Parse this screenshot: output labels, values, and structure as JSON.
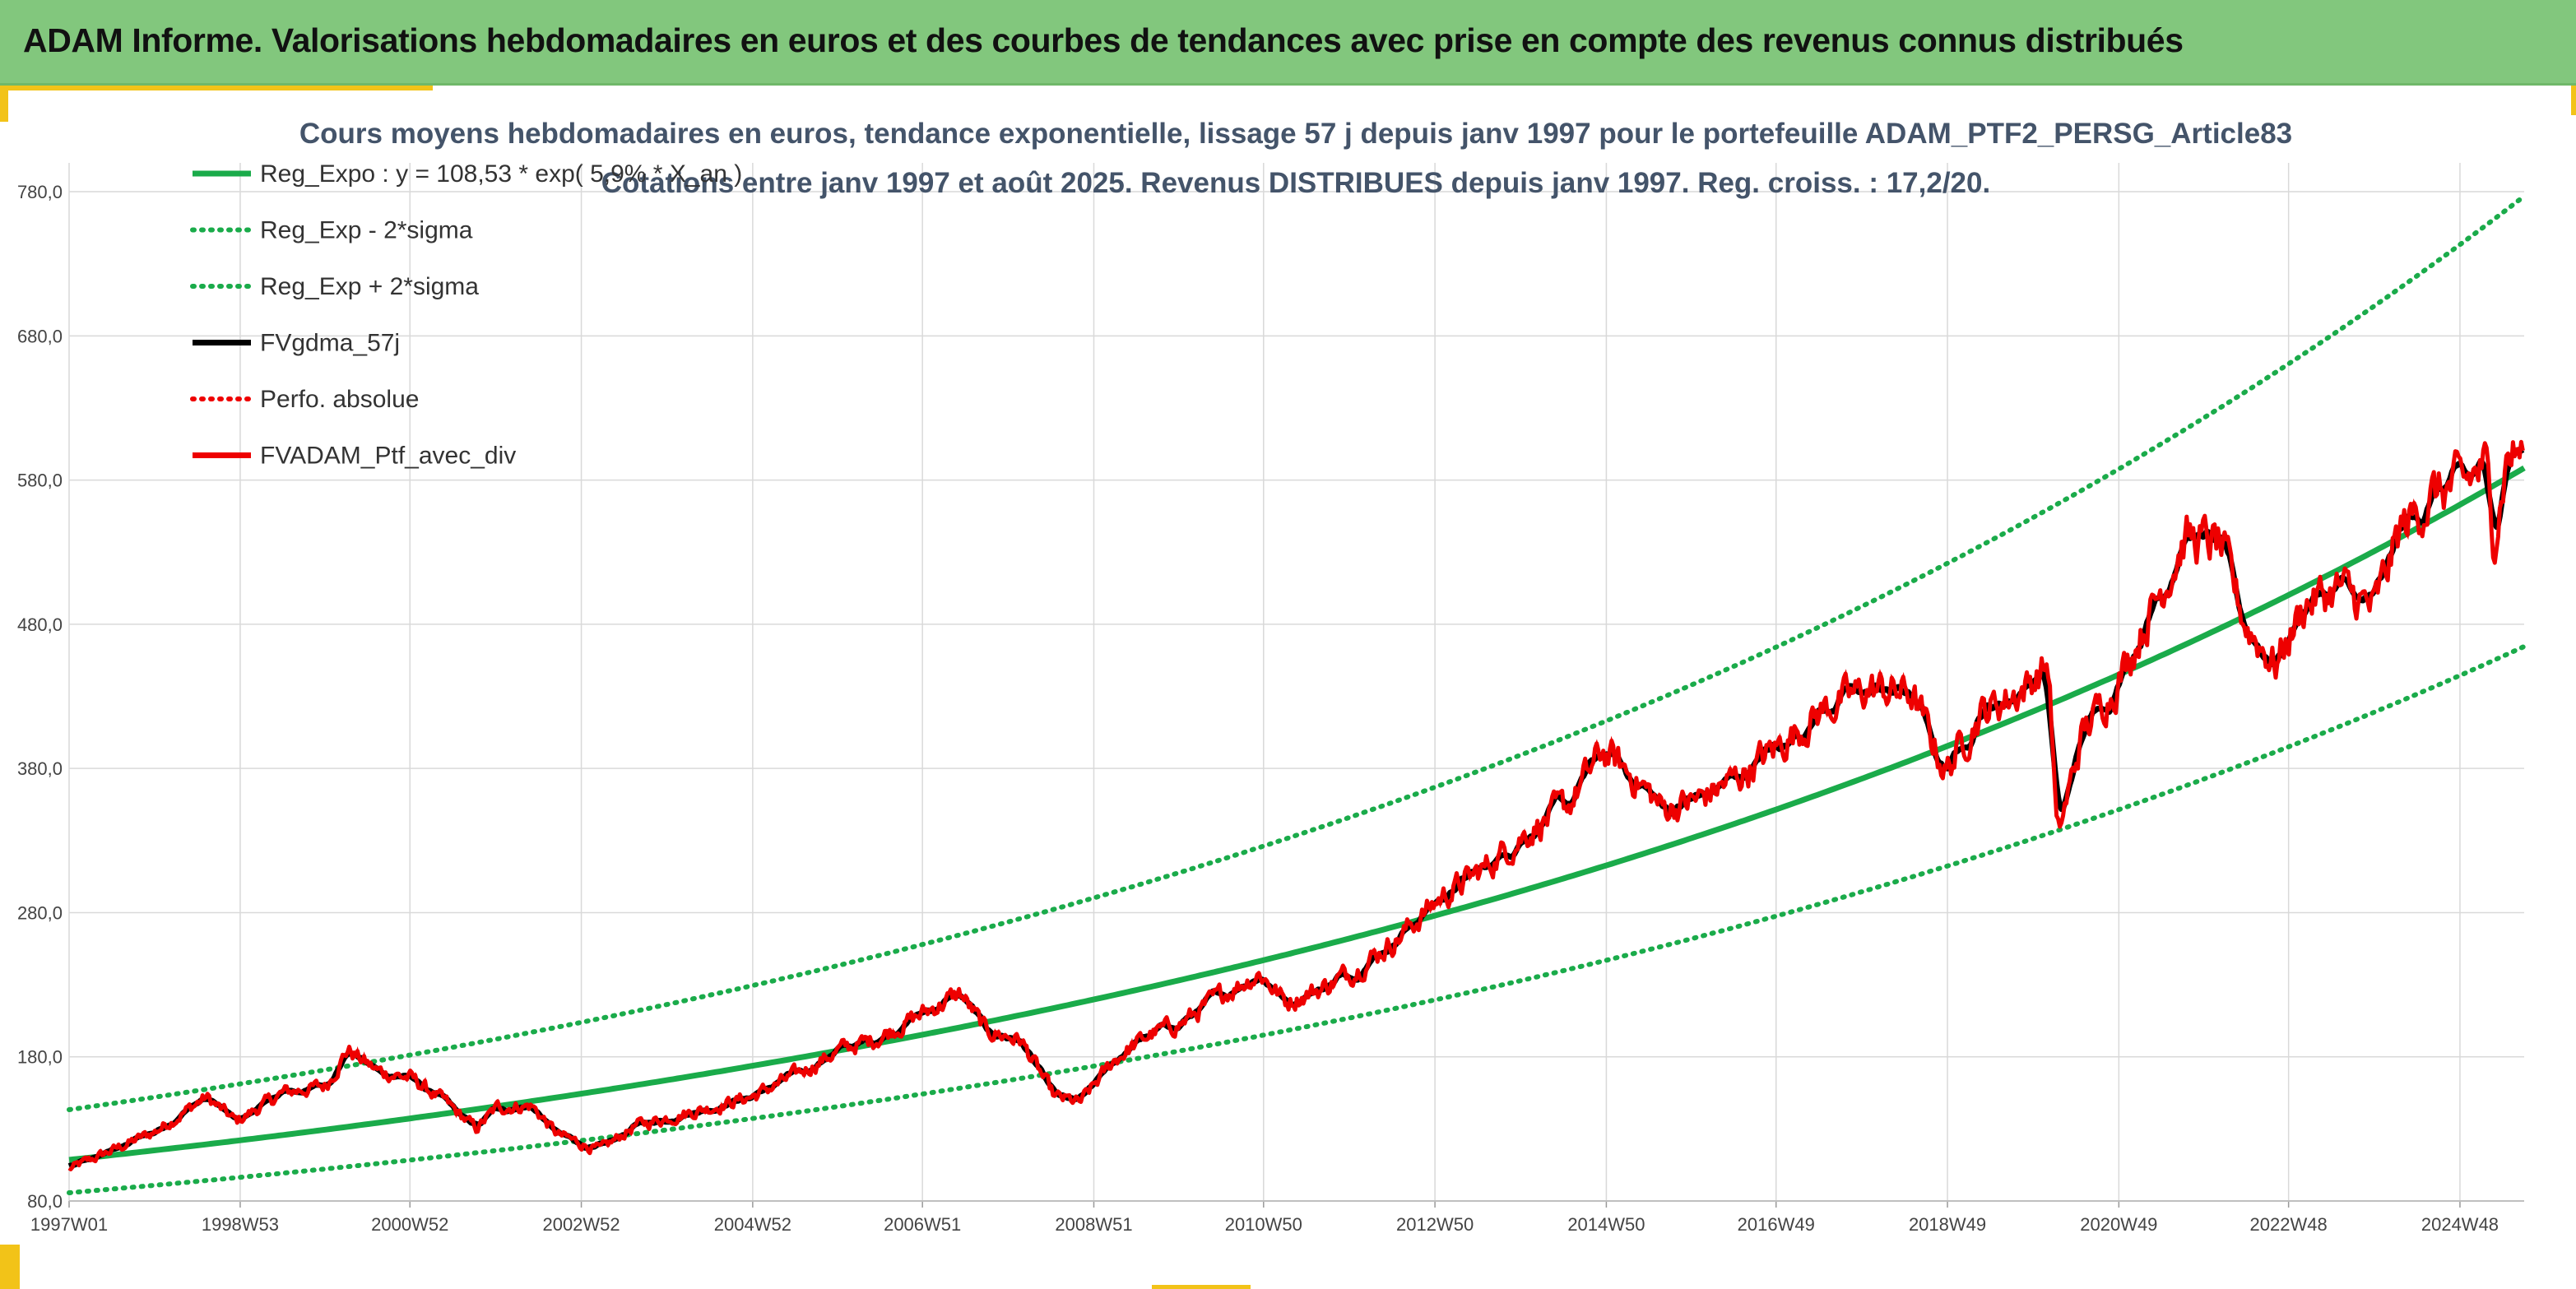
{
  "banner": {
    "title": "ADAM Informe. Valorisations hebdomadaires en euros et des courbes de tendances avec prise en compte des revenus connus distribués"
  },
  "colors": {
    "banner_bg": "#82c77d",
    "accent_yellow": "#f2c318",
    "trend_green": "#1aab4a",
    "smooth_black": "#000000",
    "price_red": "#ee0000",
    "grid": "#d9d9d9"
  },
  "chart_data": {
    "type": "line",
    "title": [
      "Cours moyens hebdomadaires en euros, tendance exponentielle, lissage 57 j depuis janv 1997 pour le portefeuille ADAM_PTF2_PERSG_Article83",
      "Cotations entre janv 1997 et août 2025. Revenus DISTRIBUES depuis janv 1997. Reg. croiss. : 17,2/20."
    ],
    "ylim": [
      80,
      800
    ],
    "xlim": [
      1997.0,
      2025.65
    ],
    "grid": "horizontal and vertical",
    "legend_position": "top-left",
    "yticks": [
      "80,0",
      "180,0",
      "280,0",
      "380,0",
      "480,0",
      "580,0",
      "680,0",
      "780,0"
    ],
    "xticks": [
      "1997W01",
      "1998W53",
      "2000W52",
      "2002W52",
      "2004W52",
      "2006W51",
      "2008W51",
      "2010W50",
      "2012W50",
      "2014W50",
      "2016W49",
      "2018W49",
      "2020W49",
      "2022W48",
      "2024W48"
    ],
    "trend": {
      "a": 108.53,
      "growth": 0.059,
      "lower_factor": 0.7896,
      "upper_factor": 1.3204
    },
    "series": [
      {
        "name": "Reg_Expo : y = 108,53 * exp( 5,9% *  X_an )",
        "style": "solid",
        "color": "#1aab4a"
      },
      {
        "name": "Reg_Exp - 2*sigma",
        "style": "dotted",
        "color": "#1aab4a"
      },
      {
        "name": "Reg_Exp + 2*sigma",
        "style": "dotted",
        "color": "#1aab4a"
      },
      {
        "name": "FVgdma_57j",
        "style": "solid",
        "color": "#000000"
      },
      {
        "name": "Perfo. absolue",
        "style": "dotted",
        "color": "#ee0000"
      },
      {
        "name": "FVADAM_Ptf_avec_div",
        "style": "solid",
        "color": "#ee0000"
      }
    ],
    "price_keypoints": [
      [
        1997.0,
        102
      ],
      [
        1997.5,
        115
      ],
      [
        1998.0,
        128
      ],
      [
        1998.6,
        152
      ],
      [
        1998.95,
        135
      ],
      [
        1999.5,
        155
      ],
      [
        2000.0,
        160
      ],
      [
        2000.25,
        185
      ],
      [
        2000.6,
        170
      ],
      [
        2001.0,
        165
      ],
      [
        2001.4,
        148
      ],
      [
        2001.75,
        130
      ],
      [
        2002.0,
        145
      ],
      [
        2002.4,
        146
      ],
      [
        2002.7,
        126
      ],
      [
        2003.2,
        115
      ],
      [
        2003.6,
        132
      ],
      [
        2004.0,
        138
      ],
      [
        2004.5,
        145
      ],
      [
        2005.0,
        153
      ],
      [
        2005.5,
        168
      ],
      [
        2006.0,
        185
      ],
      [
        2006.4,
        192
      ],
      [
        2006.9,
        208
      ],
      [
        2007.4,
        224
      ],
      [
        2007.7,
        198
      ],
      [
        2008.1,
        192
      ],
      [
        2008.5,
        152
      ],
      [
        2008.8,
        148
      ],
      [
        2009.2,
        178
      ],
      [
        2009.6,
        195
      ],
      [
        2010.0,
        204
      ],
      [
        2010.5,
        225
      ],
      [
        2010.9,
        238
      ],
      [
        2011.2,
        218
      ],
      [
        2011.6,
        227
      ],
      [
        2012.0,
        240
      ],
      [
        2012.5,
        262
      ],
      [
        2013.0,
        290
      ],
      [
        2013.5,
        310
      ],
      [
        2014.0,
        335
      ],
      [
        2014.5,
        355
      ],
      [
        2014.9,
        392
      ],
      [
        2015.3,
        372
      ],
      [
        2015.6,
        352
      ],
      [
        2016.0,
        358
      ],
      [
        2016.5,
        375
      ],
      [
        2017.0,
        398
      ],
      [
        2017.5,
        422
      ],
      [
        2018.0,
        435
      ],
      [
        2018.5,
        432
      ],
      [
        2018.9,
        378
      ],
      [
        2019.3,
        418
      ],
      [
        2019.8,
        435
      ],
      [
        2020.1,
        452
      ],
      [
        2020.2,
        330
      ],
      [
        2020.5,
        405
      ],
      [
        2020.9,
        440
      ],
      [
        2021.3,
        490
      ],
      [
        2021.7,
        540
      ],
      [
        2022.1,
        535
      ],
      [
        2022.4,
        480
      ],
      [
        2022.75,
        452
      ],
      [
        2023.1,
        495
      ],
      [
        2023.5,
        505
      ],
      [
        2023.9,
        490
      ],
      [
        2024.2,
        545
      ],
      [
        2024.6,
        570
      ],
      [
        2024.95,
        578
      ],
      [
        2025.2,
        590
      ],
      [
        2025.3,
        540
      ],
      [
        2025.45,
        598
      ],
      [
        2025.65,
        600
      ]
    ]
  }
}
